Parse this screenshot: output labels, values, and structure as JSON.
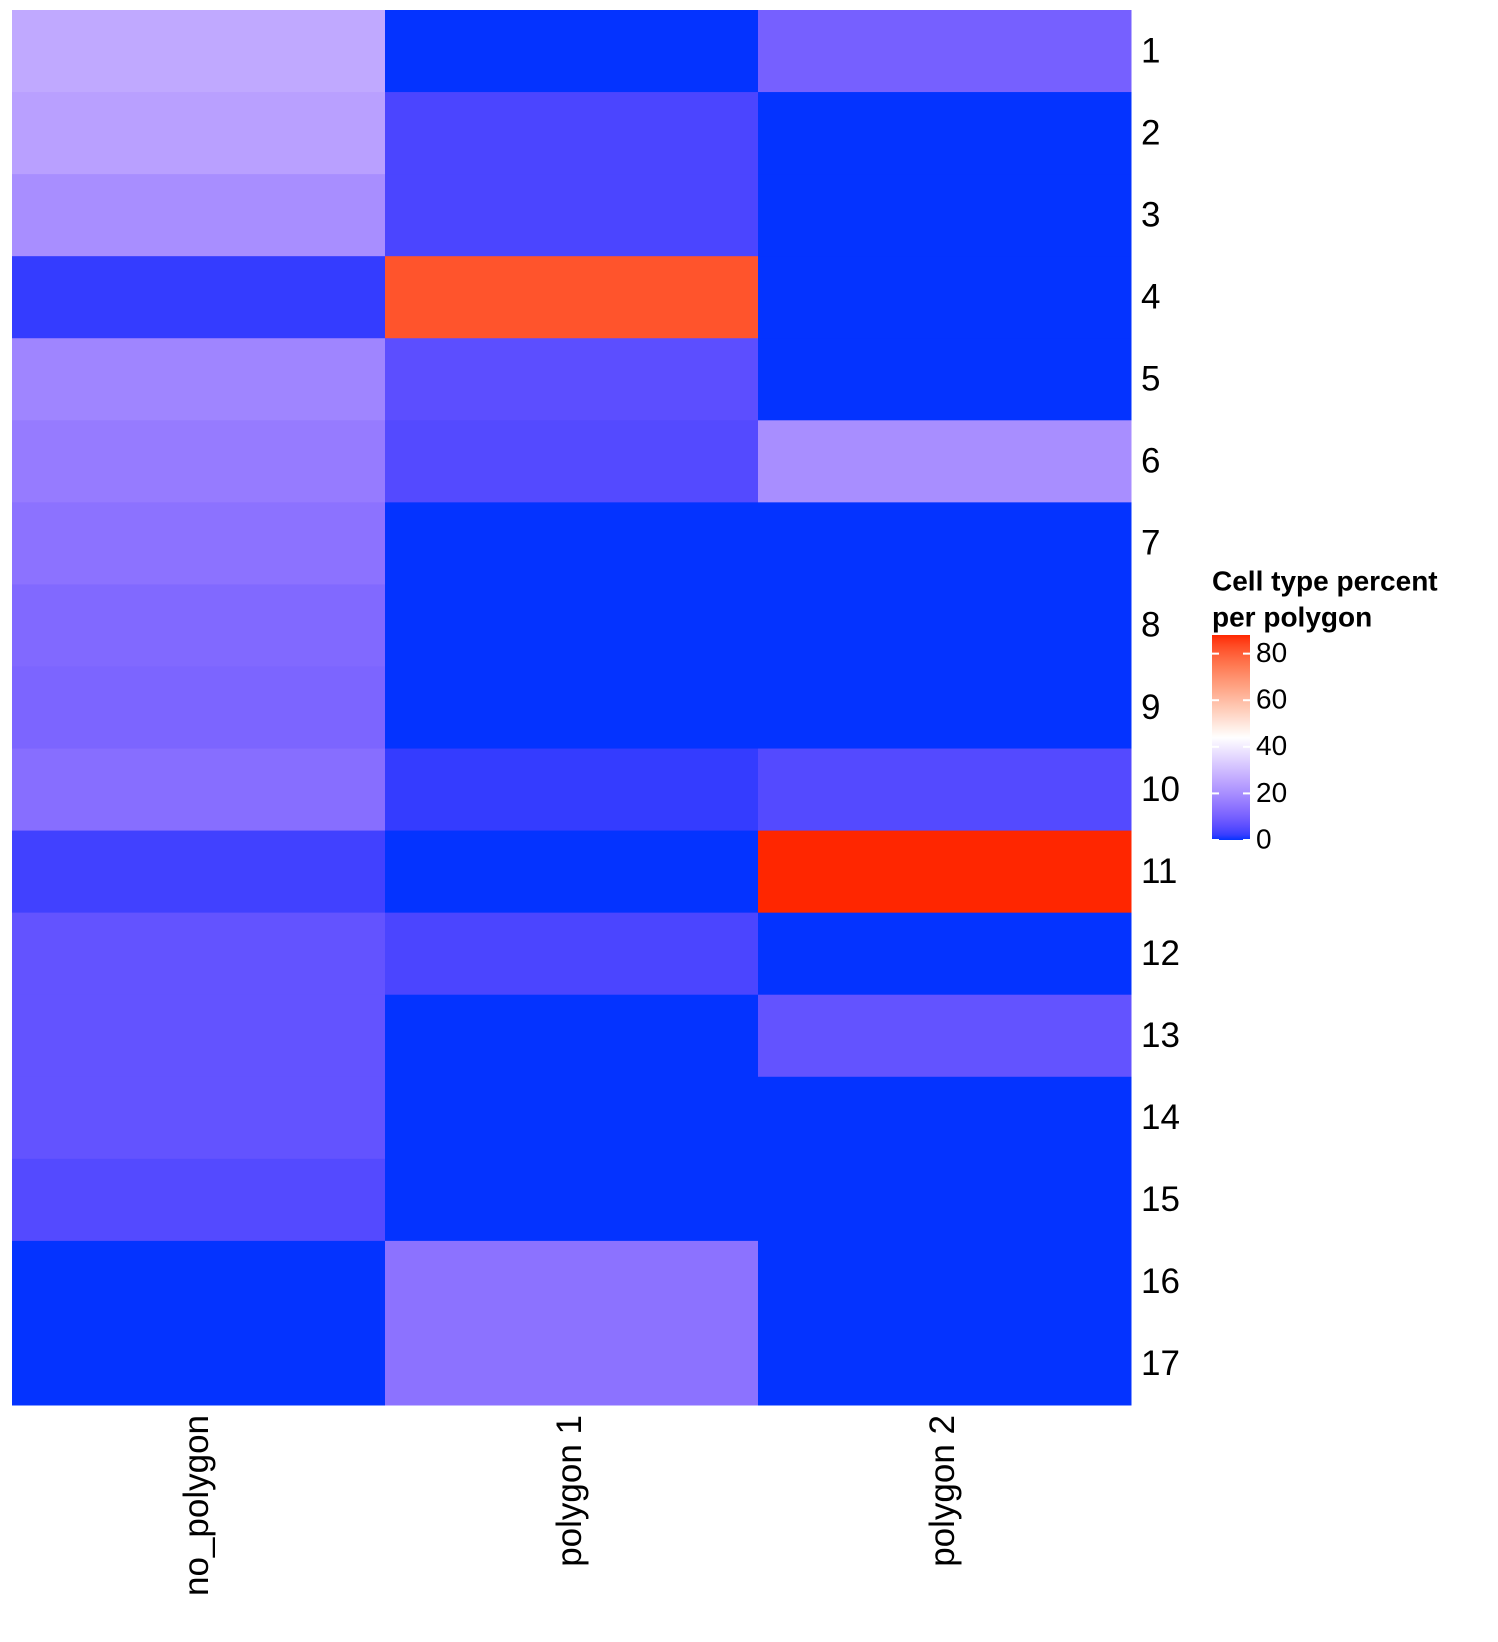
{
  "chart_data": {
    "type": "heatmap",
    "legend_title": [
      "Cell type percent",
      "per polygon"
    ],
    "categories": [
      "1",
      "2",
      "3",
      "4",
      "5",
      "6",
      "7",
      "8",
      "9",
      "10",
      "11",
      "12",
      "13",
      "14",
      "15",
      "16",
      "17"
    ],
    "series": [
      {
        "name": "no_polygon",
        "values": [
          26,
          24,
          20,
          2,
          18,
          16,
          14,
          12,
          11,
          13,
          3,
          7,
          7,
          7,
          5,
          0,
          0
        ]
      },
      {
        "name": "polygon 1",
        "values": [
          0,
          4,
          4,
          82,
          6,
          5,
          0,
          0,
          0,
          2,
          0,
          4,
          0,
          0,
          0,
          14,
          14
        ]
      },
      {
        "name": "polygon 2",
        "values": [
          10,
          0,
          0,
          0,
          0,
          20,
          0,
          0,
          0,
          5,
          88,
          0,
          7,
          0,
          0,
          0,
          0
        ]
      }
    ],
    "colors": [
      "#0433FF",
      "#FFFFFF",
      "#FF2600"
    ],
    "zlim": [
      0,
      88
    ],
    "zticks": [
      0,
      20,
      40,
      60,
      80
    ]
  }
}
